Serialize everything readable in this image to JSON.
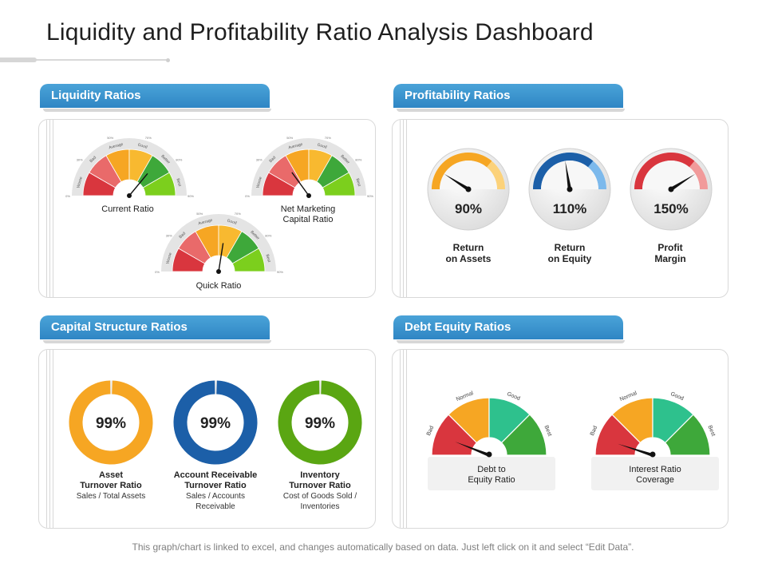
{
  "title": "Liquidity and Profitability Ratio Analysis Dashboard",
  "footer": "This graph/chart is linked to excel, and changes automatically based on data. Just left click on it and select “Edit Data”.",
  "colors": {
    "tab_blue": "#3592cd",
    "red": "#d9363e",
    "salmon": "#e96a6a",
    "orange": "#f6a623",
    "amber": "#f8b930",
    "green": "#3ea83a",
    "lime": "#7ccf1d",
    "teal": "#2ec18d",
    "dark_blue": "#1c5fa8",
    "light_blue": "#7cb9ec"
  },
  "liquidity": {
    "heading": "Liquidity Ratios",
    "scale_labels": [
      "Worse",
      "Bad",
      "Average",
      "Good",
      "Better",
      "Best"
    ],
    "gauges": [
      {
        "name": "Current Ratio",
        "needle_fraction": 0.72
      },
      {
        "name_line1": "Net Marketing",
        "name_line2": "Capital Ratio",
        "needle_fraction": 0.3
      },
      {
        "name": "Quick Ratio",
        "needle_fraction": 0.55
      }
    ]
  },
  "profitability": {
    "heading": "Profitability Ratios",
    "gauges": [
      {
        "value": "90%",
        "line1": "Return",
        "line2": "on Assets",
        "needle_fraction": 0.18,
        "color": "#f6a623",
        "light": "#fcd27a"
      },
      {
        "value": "110%",
        "line1": "Return",
        "line2": "on Equity",
        "needle_fraction": 0.45,
        "color": "#1c5fa8",
        "light": "#7cb9ec"
      },
      {
        "value": "150%",
        "line1": "Profit",
        "line2": "Margin",
        "needle_fraction": 0.82,
        "color": "#d9363e",
        "light": "#f19a9a"
      }
    ]
  },
  "capital": {
    "heading": "Capital Structure Ratios",
    "items": [
      {
        "value": "99%",
        "title1": "Asset",
        "title2": "Turnover Ratio",
        "sub1": "Sales / Total Assets",
        "sub2": "",
        "color": "#f6a623",
        "fraction": 0.99
      },
      {
        "value": "99%",
        "title1": "Account Receivable",
        "title2": "Turnover Ratio",
        "sub1": "Sales / Accounts",
        "sub2": "Receivable",
        "color": "#1c5fa8",
        "fraction": 0.99
      },
      {
        "value": "99%",
        "title1": "Inventory",
        "title2": "Turnover Ratio",
        "sub1": "Cost of Goods Sold /",
        "sub2": "Inventories",
        "color": "#5aa612",
        "fraction": 0.99
      }
    ]
  },
  "debt": {
    "heading": "Debt Equity Ratios",
    "scale_labels": [
      "Bad",
      "Normal",
      "Good",
      "Best"
    ],
    "gauges": [
      {
        "line1": "Debt to",
        "line2": "Equity Ratio",
        "needle_fraction": 0.12
      },
      {
        "line1": "Interest Ratio",
        "line2": "Coverage",
        "needle_fraction": 0.1
      }
    ]
  }
}
